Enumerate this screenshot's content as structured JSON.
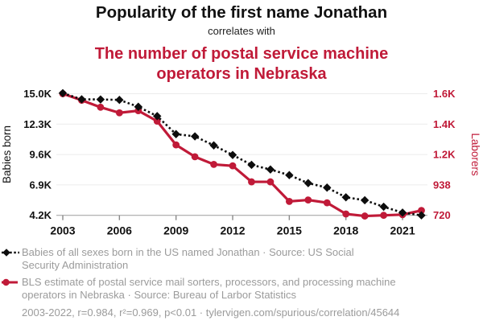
{
  "header": {
    "title": "Popularity of the first name Jonathan",
    "connector": "correlates with",
    "subtitle_lines": [
      "The number of postal service machine",
      "operators in Nebraska"
    ]
  },
  "chart_data": {
    "type": "line",
    "x": [
      2003,
      2004,
      2005,
      2006,
      2007,
      2008,
      2009,
      2010,
      2011,
      2012,
      2013,
      2014,
      2015,
      2016,
      2017,
      2018,
      2019,
      2020,
      2021,
      2022
    ],
    "x_ticks": [
      2003,
      2006,
      2009,
      2012,
      2015,
      2018,
      2021
    ],
    "left_axis": {
      "label": "Babies born",
      "min": 4200,
      "max": 15000,
      "ticks": [
        {
          "value": 15000,
          "label": "15.0K"
        },
        {
          "value": 12300,
          "label": "12.3K"
        },
        {
          "value": 9600,
          "label": "9.6K"
        },
        {
          "value": 6900,
          "label": "6.9K"
        },
        {
          "value": 4200,
          "label": "4.2K"
        }
      ]
    },
    "right_axis": {
      "label": "Laborers",
      "min": 720,
      "max": 1592,
      "ticks": [
        {
          "value": 1592,
          "label": "1.6K"
        },
        {
          "value": 1374,
          "label": "1.4K"
        },
        {
          "value": 1156,
          "label": "1.2K"
        },
        {
          "value": 938,
          "label": "938"
        },
        {
          "value": 720,
          "label": "720"
        }
      ]
    },
    "series": [
      {
        "name": "Babies of all sexes born in the US named Jonathan",
        "axis": "left",
        "color": "#0d0d0d",
        "line_style": "dashed",
        "marker": "diamond",
        "values": [
          15050,
          14500,
          14490,
          14450,
          13840,
          13010,
          11410,
          11210,
          10410,
          9560,
          8680,
          8270,
          7770,
          7060,
          6660,
          5800,
          5540,
          4960,
          4440,
          4200
        ]
      },
      {
        "name": "BLS estimate of postal service mail sorters, processors, and processing machine operators in Nebraska",
        "axis": "right",
        "color": "#c01a38",
        "line_style": "solid",
        "marker": "circle",
        "values": [
          1592,
          1545,
          1495,
          1455,
          1470,
          1395,
          1225,
          1140,
          1085,
          1075,
          960,
          960,
          820,
          830,
          810,
          730,
          715,
          720,
          725,
          755
        ]
      }
    ],
    "grid": "horizontal",
    "legend_position": "bottom"
  },
  "legend": [
    {
      "marker": "black-diamond-dashed",
      "lines": [
        "Babies of all sexes born in the US named Jonathan · Source: US Social",
        "Security Administration"
      ]
    },
    {
      "marker": "red-circle-solid",
      "lines": [
        "BLS estimate of postal service mail sorters, processors, and processing machine",
        "operators in Nebraska · Source: Bureau of Larbor Statistics"
      ]
    }
  ],
  "footer": "2003-2022, r=0.984, r²=0.969, p<0.01 · tylervigen.com/spurious/correlation/45644",
  "colors": {
    "accent_red": "#c01a38",
    "series_black": "#0d0d0d",
    "muted_text": "#9b9b9b"
  }
}
